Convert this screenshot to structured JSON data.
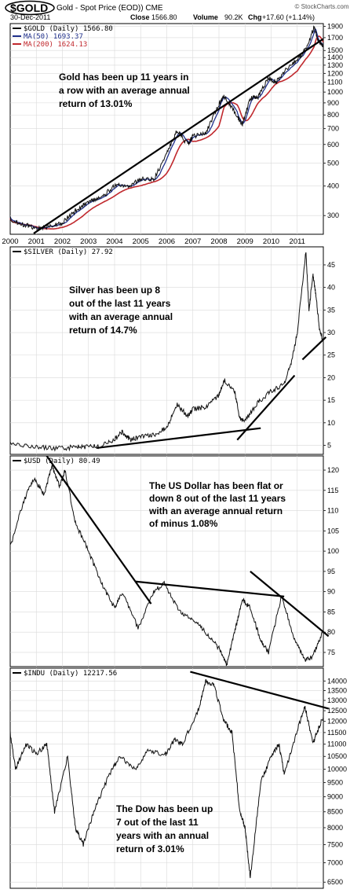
{
  "header": {
    "symbol": "$GOLD",
    "title": "Gold - Spot Price (EOD)) CME",
    "date": "30-Dec-2011",
    "close_label": "Close",
    "close_value": "1566.80",
    "volume_label": "Volume",
    "volume_value": "90.2K",
    "chg_label": "Chg",
    "chg_value": "+17.60 (+1.14%)",
    "source": "© StockCharts.com"
  },
  "colors": {
    "price": "#101010",
    "ma50": "#1f2f8a",
    "ma200": "#c0282d",
    "grid": "#d9d9d9",
    "trend": "#000000"
  },
  "chart_data": [
    {
      "type": "line",
      "title": "$GOLD (Daily) 1566.80",
      "scale": "log",
      "ylim": [
        250,
        1950
      ],
      "yticks": [
        300,
        400,
        500,
        600,
        700,
        800,
        900,
        1000,
        1100,
        1200,
        1300,
        1400,
        1500,
        1700,
        1900
      ],
      "xticks": [
        "2000",
        "2001",
        "2002",
        "2003",
        "2004",
        "2005",
        "2006",
        "2007",
        "2008",
        "2009",
        "2010",
        "2011"
      ],
      "legend": [
        {
          "label": "$GOLD (Daily) 1566.80",
          "color": "#101010"
        },
        {
          "label": "MA(50) 1693.37",
          "color": "#1f2f8a"
        },
        {
          "label": "MA(200) 1624.13",
          "color": "#c0282d"
        }
      ],
      "annotation": [
        "Gold has been up 11 years in",
        "a row with an average annual",
        "return of 13.01%"
      ],
      "x": [
        2000.0,
        2000.5,
        2001.0,
        2001.5,
        2002.0,
        2002.5,
        2003.0,
        2003.5,
        2004.0,
        2004.5,
        2005.0,
        2005.5,
        2006.0,
        2006.4,
        2006.8,
        2007.0,
        2007.5,
        2008.0,
        2008.2,
        2008.7,
        2008.9,
        2009.2,
        2009.5,
        2009.9,
        2010.2,
        2010.5,
        2011.0,
        2011.3,
        2011.65,
        2011.8,
        2012.0
      ],
      "series": [
        {
          "values": [
            290,
            275,
            265,
            270,
            280,
            315,
            345,
            355,
            405,
            395,
            430,
            425,
            550,
            690,
            600,
            650,
            670,
            890,
            960,
            790,
            730,
            940,
            950,
            1150,
            1100,
            1230,
            1370,
            1500,
            1880,
            1650,
            1566.8
          ]
        }
      ],
      "trendlines": [
        {
          "x": [
            2000.9,
            2012.0
          ],
          "y": [
            252,
            1680
          ]
        }
      ]
    },
    {
      "type": "line",
      "title": "$SILVER (Daily) 27.92",
      "scale": "linear",
      "ylim": [
        3,
        49
      ],
      "yticks": [
        5,
        10,
        15,
        20,
        25,
        30,
        35,
        40,
        45
      ],
      "annotation": [
        "Silver has been up 8",
        "out of the last 11 years",
        "with an average annual",
        "return of 14.7%"
      ],
      "x": [
        2000.0,
        2001.0,
        2001.8,
        2002.5,
        2003.0,
        2003.5,
        2004.0,
        2004.3,
        2004.6,
        2005.0,
        2005.5,
        2006.0,
        2006.4,
        2006.8,
        2007.0,
        2007.5,
        2008.0,
        2008.2,
        2008.6,
        2008.8,
        2009.0,
        2009.5,
        2010.0,
        2010.5,
        2010.8,
        2011.0,
        2011.33,
        2011.45,
        2011.6,
        2011.7,
        2011.85,
        2012.0
      ],
      "series": [
        {
          "values": [
            5.2,
            4.7,
            4.3,
            4.6,
            4.7,
            4.9,
            6.3,
            8.0,
            6.2,
            7.0,
            7.3,
            9.0,
            14.0,
            11.5,
            13.0,
            13.5,
            16.0,
            19.5,
            17.0,
            11.0,
            10.5,
            14.5,
            17.0,
            18.5,
            24.0,
            30.0,
            48.0,
            35.0,
            43.0,
            39.0,
            31.0,
            27.92
          ]
        }
      ],
      "trendlines": [
        {
          "x": [
            2003.3,
            2009.6
          ],
          "y": [
            4.4,
            8.8
          ]
        },
        {
          "x": [
            2008.7,
            2010.9
          ],
          "y": [
            6.2,
            20.5
          ]
        },
        {
          "x": [
            2011.2,
            2012.1
          ],
          "y": [
            24.0,
            29.0
          ]
        }
      ]
    },
    {
      "type": "line",
      "title": "$USD (Daily) 80.49",
      "scale": "linear",
      "ylim": [
        71.5,
        123.5
      ],
      "yticks": [
        75,
        80,
        85,
        90,
        95,
        100,
        105,
        110,
        115,
        120
      ],
      "annotation": [
        "The US Dollar has been flat or",
        "down 8 out of the last 11 years",
        "with an average annual return",
        "of minus 1.08%"
      ],
      "x": [
        2000.0,
        2000.5,
        2000.9,
        2001.3,
        2001.6,
        2001.9,
        2002.1,
        2002.5,
        2003.0,
        2003.5,
        2004.0,
        2004.3,
        2004.9,
        2005.5,
        2005.9,
        2006.5,
        2007.0,
        2007.5,
        2008.0,
        2008.3,
        2008.6,
        2008.9,
        2009.2,
        2009.6,
        2009.9,
        2010.4,
        2010.9,
        2011.3,
        2011.6,
        2012.0
      ],
      "series": [
        {
          "values": [
            101,
            112,
            118,
            114,
            121,
            116,
            120,
            107,
            100,
            92,
            86,
            90,
            81,
            90,
            92,
            85,
            83,
            80,
            76,
            72,
            80,
            88,
            86,
            78,
            75,
            89,
            78,
            73,
            74,
            80.49
          ]
        }
      ],
      "trendlines": [
        {
          "x": [
            2001.4,
            2005.4
          ],
          "y": [
            123.5,
            87.0
          ]
        },
        {
          "x": [
            2004.8,
            2010.5
          ],
          "y": [
            92.5,
            88.8
          ]
        },
        {
          "x": [
            2009.2,
            2012.2
          ],
          "y": [
            95.0,
            79.0
          ]
        }
      ]
    },
    {
      "type": "line",
      "title": "$INDU (Daily) 12217.56",
      "scale": "log",
      "ylim": [
        6350,
        14700
      ],
      "yticks": [
        6500,
        7000,
        7500,
        8000,
        8500,
        9000,
        9500,
        10000,
        10500,
        11000,
        11500,
        12000,
        12500,
        13000,
        13500,
        14000
      ],
      "annotation": [
        "The Dow has been up",
        "7 out of the last 11",
        "years with an annual",
        "return of 3.01%"
      ],
      "x": [
        2000.0,
        2000.2,
        2000.6,
        2001.0,
        2001.4,
        2001.7,
        2002.2,
        2002.5,
        2002.8,
        2003.2,
        2003.8,
        2004.2,
        2004.8,
        2005.3,
        2005.9,
        2006.3,
        2006.6,
        2007.2,
        2007.5,
        2007.8,
        2008.2,
        2008.5,
        2008.8,
        2009.0,
        2009.2,
        2009.6,
        2010.0,
        2010.3,
        2010.5,
        2011.0,
        2011.3,
        2011.6,
        2011.75,
        2012.0
      ],
      "series": [
        {
          "values": [
            11500,
            10000,
            11000,
            10600,
            11000,
            8500,
            10500,
            8000,
            7500,
            8500,
            9800,
            10500,
            10000,
            10800,
            10500,
            11200,
            11000,
            12500,
            14000,
            13800,
            12000,
            11500,
            8500,
            8000,
            6600,
            9500,
            10500,
            11000,
            9800,
            11600,
            12700,
            11000,
            11500,
            12217.56
          ]
        }
      ],
      "trendlines": [
        {
          "x": [
            2006.9,
            2012.2
          ],
          "y": [
            14500,
            12600
          ]
        }
      ]
    }
  ]
}
